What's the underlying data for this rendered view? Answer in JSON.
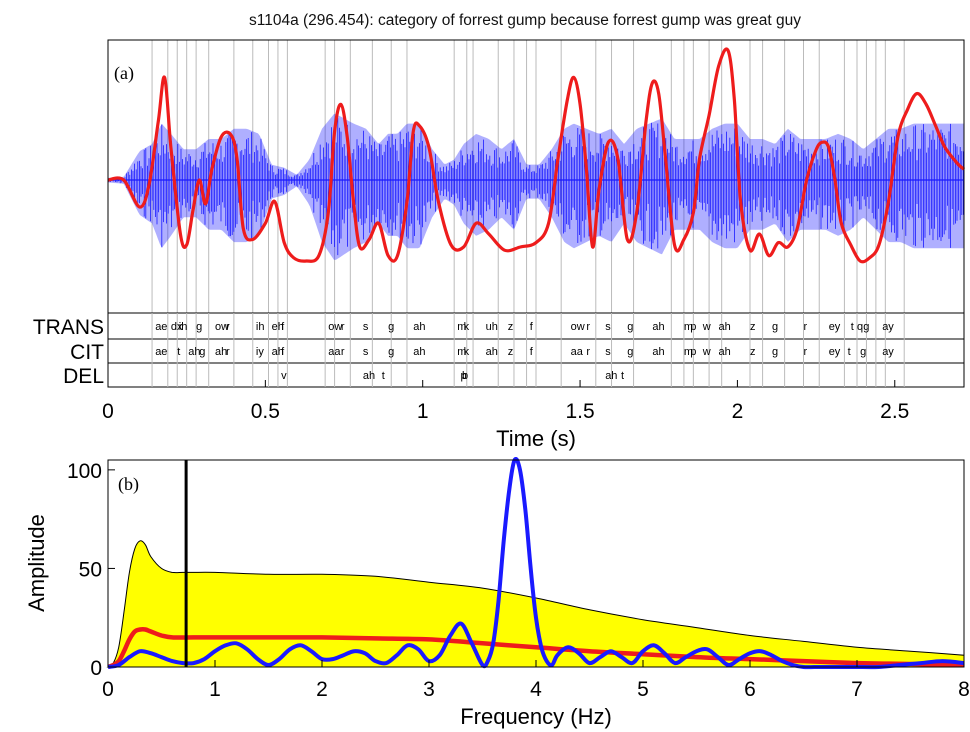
{
  "title": "s1104a (296.454): category of forrest gump because forrest gump was great guy",
  "colors": {
    "waveform": "#1a1aff",
    "envelope": "#ee1c1c",
    "spectrum_band": "#ffff00",
    "spectrum_mean": "#ee1c1c",
    "spectrum_trial": "#1a1aff",
    "marker": "#000000",
    "boundary": "#bbbbbb"
  },
  "chart_data": [
    {
      "type": "line",
      "panel_label": "(a)",
      "xlabel": "Time (s)",
      "ylabel": "",
      "xlim": [
        0,
        2.72
      ],
      "x_ticks": [
        0,
        0.5,
        1,
        1.5,
        2,
        2.5
      ],
      "x_tick_labels": [
        "0",
        "0.5",
        "1",
        "1.5",
        "2",
        "2.5"
      ],
      "grid": false,
      "series": [
        {
          "role": "envelope",
          "x": [
            0.0,
            0.05,
            0.1,
            0.13,
            0.16,
            0.18,
            0.2,
            0.23,
            0.25,
            0.27,
            0.29,
            0.31,
            0.33,
            0.36,
            0.39,
            0.41,
            0.43,
            0.46,
            0.5,
            0.53,
            0.56,
            0.59,
            0.63,
            0.67,
            0.7,
            0.72,
            0.74,
            0.76,
            0.78,
            0.8,
            0.83,
            0.86,
            0.89,
            0.92,
            0.95,
            0.97,
            0.99,
            1.02,
            1.05,
            1.09,
            1.13,
            1.17,
            1.21,
            1.26,
            1.31,
            1.36,
            1.4,
            1.43,
            1.46,
            1.48,
            1.5,
            1.52,
            1.54,
            1.56,
            1.59,
            1.62,
            1.65,
            1.68,
            1.71,
            1.73,
            1.75,
            1.77,
            1.8,
            1.83,
            1.86,
            1.88,
            1.91,
            1.94,
            1.97,
            1.99,
            2.01,
            2.04,
            2.07,
            2.1,
            2.13,
            2.16,
            2.19,
            2.22,
            2.25,
            2.27,
            2.29,
            2.31,
            2.33,
            2.36,
            2.39,
            2.42,
            2.45,
            2.48,
            2.51,
            2.54,
            2.57,
            2.6,
            2.63,
            2.66,
            2.7,
            2.72
          ],
          "y": [
            0.0,
            0.0,
            -0.25,
            -0.05,
            0.55,
            0.95,
            0.3,
            -0.5,
            -0.6,
            -0.28,
            0.0,
            -0.22,
            0.1,
            0.4,
            0.42,
            0.2,
            -0.45,
            -0.55,
            -0.4,
            -0.2,
            -0.58,
            -0.72,
            -0.75,
            -0.7,
            -0.3,
            0.45,
            0.7,
            0.4,
            -0.2,
            -0.62,
            -0.55,
            -0.4,
            -0.7,
            -0.7,
            -0.2,
            0.45,
            0.5,
            0.3,
            -0.2,
            -0.6,
            -0.62,
            -0.4,
            -0.5,
            -0.65,
            -0.62,
            -0.58,
            -0.4,
            0.2,
            0.75,
            0.95,
            0.7,
            0.1,
            -0.62,
            -0.1,
            0.35,
            0.2,
            -0.55,
            -0.3,
            0.55,
            0.9,
            0.8,
            0.25,
            -0.6,
            -0.55,
            -0.3,
            0.2,
            0.6,
            1.05,
            1.2,
            0.75,
            -0.2,
            -0.65,
            -0.5,
            -0.7,
            -0.58,
            -0.62,
            -0.45,
            0.0,
            0.28,
            0.35,
            0.3,
            0.0,
            -0.4,
            -0.6,
            -0.75,
            -0.72,
            -0.6,
            -0.2,
            0.4,
            0.65,
            0.8,
            0.7,
            0.5,
            0.3,
            0.15,
            0.1
          ]
        }
      ],
      "waveform_amplitude_envelope": {
        "x": [
          0.0,
          0.05,
          0.1,
          0.14,
          0.17,
          0.2,
          0.24,
          0.28,
          0.32,
          0.36,
          0.4,
          0.44,
          0.48,
          0.52,
          0.56,
          0.6,
          0.64,
          0.68,
          0.72,
          0.75,
          0.78,
          0.82,
          0.86,
          0.89,
          0.92,
          0.95,
          0.99,
          1.03,
          1.07,
          1.1,
          1.13,
          1.17,
          1.21,
          1.25,
          1.29,
          1.33,
          1.37,
          1.41,
          1.45,
          1.48,
          1.52,
          1.56,
          1.6,
          1.64,
          1.68,
          1.72,
          1.76,
          1.8,
          1.84,
          1.88,
          1.92,
          1.96,
          2.0,
          2.04,
          2.08,
          2.12,
          2.16,
          2.2,
          2.24,
          2.28,
          2.32,
          2.36,
          2.4,
          2.44,
          2.48,
          2.52,
          2.56,
          2.6,
          2.64,
          2.68,
          2.72
        ],
        "y": [
          0.02,
          0.03,
          0.28,
          0.35,
          0.55,
          0.45,
          0.3,
          0.3,
          0.4,
          0.4,
          0.5,
          0.5,
          0.45,
          0.15,
          0.12,
          0.05,
          0.2,
          0.5,
          0.65,
          0.6,
          0.55,
          0.5,
          0.35,
          0.45,
          0.45,
          0.55,
          0.55,
          0.3,
          0.15,
          0.2,
          0.35,
          0.45,
          0.4,
          0.3,
          0.4,
          0.15,
          0.15,
          0.3,
          0.5,
          0.55,
          0.5,
          0.45,
          0.5,
          0.35,
          0.5,
          0.55,
          0.6,
          0.4,
          0.4,
          0.4,
          0.5,
          0.55,
          0.55,
          0.4,
          0.4,
          0.35,
          0.5,
          0.4,
          0.4,
          0.4,
          0.45,
          0.4,
          0.3,
          0.4,
          0.5,
          0.5,
          0.55,
          0.55,
          0.55,
          0.55,
          0.55
        ]
      },
      "phone_boundaries": [
        0.14,
        0.19,
        0.22,
        0.25,
        0.28,
        0.32,
        0.4,
        0.46,
        0.51,
        0.54,
        0.57,
        0.69,
        0.72,
        0.77,
        0.84,
        0.9,
        0.95,
        1.1,
        1.14,
        1.16,
        1.24,
        1.29,
        1.33,
        1.36,
        1.44,
        1.55,
        1.6,
        1.67,
        1.79,
        1.83,
        1.86,
        1.91,
        1.95,
        2.04,
        2.08,
        2.15,
        2.21,
        2.26,
        2.34,
        2.38,
        2.41,
        2.44,
        2.47,
        2.53
      ],
      "tiers": [
        {
          "name": "TRANS",
          "labels": [
            {
              "text": "ae",
              "t": 0.15
            },
            {
              "text": "dx",
              "t": 0.2
            },
            {
              "text": "ih",
              "t": 0.225
            },
            {
              "text": "g",
              "t": 0.28
            },
            {
              "text": "ow",
              "t": 0.34
            },
            {
              "text": "r",
              "t": 0.375
            },
            {
              "text": "ih",
              "t": 0.47
            },
            {
              "text": "eh",
              "t": 0.52
            },
            {
              "text": "f",
              "t": 0.55
            },
            {
              "text": "ow",
              "t": 0.7
            },
            {
              "text": "r",
              "t": 0.74
            },
            {
              "text": "s",
              "t": 0.81
            },
            {
              "text": "g",
              "t": 0.89
            },
            {
              "text": "ah",
              "t": 0.97
            },
            {
              "text": "m",
              "t": 1.11
            },
            {
              "text": "k",
              "t": 1.13
            },
            {
              "text": "uh",
              "t": 1.2
            },
            {
              "text": "z",
              "t": 1.27
            },
            {
              "text": "f",
              "t": 1.34
            },
            {
              "text": "ow",
              "t": 1.47
            },
            {
              "text": "r",
              "t": 1.52
            },
            {
              "text": "s",
              "t": 1.58
            },
            {
              "text": "g",
              "t": 1.65
            },
            {
              "text": "ah",
              "t": 1.73
            },
            {
              "text": "m",
              "t": 1.83
            },
            {
              "text": "p",
              "t": 1.85
            },
            {
              "text": "w",
              "t": 1.89
            },
            {
              "text": "ah",
              "t": 1.94
            },
            {
              "text": "z",
              "t": 2.04
            },
            {
              "text": "g",
              "t": 2.11
            },
            {
              "text": "r",
              "t": 2.21
            },
            {
              "text": "ey",
              "t": 2.29
            },
            {
              "text": "t",
              "t": 2.36
            },
            {
              "text": "q",
              "t": 2.38
            },
            {
              "text": "g",
              "t": 2.4
            },
            {
              "text": "ay",
              "t": 2.46
            }
          ]
        },
        {
          "name": "CIT",
          "labels": [
            {
              "text": "ae",
              "t": 0.15
            },
            {
              "text": "t",
              "t": 0.22
            },
            {
              "text": "ah",
              "t": 0.255
            },
            {
              "text": "g",
              "t": 0.29
            },
            {
              "text": "ah",
              "t": 0.34
            },
            {
              "text": "r",
              "t": 0.375
            },
            {
              "text": "iy",
              "t": 0.47
            },
            {
              "text": "ah",
              "t": 0.52
            },
            {
              "text": "f",
              "t": 0.55
            },
            {
              "text": "aa",
              "t": 0.7
            },
            {
              "text": "r",
              "t": 0.74
            },
            {
              "text": "s",
              "t": 0.81
            },
            {
              "text": "g",
              "t": 0.89
            },
            {
              "text": "ah",
              "t": 0.97
            },
            {
              "text": "m",
              "t": 1.11
            },
            {
              "text": "k",
              "t": 1.13
            },
            {
              "text": "ah",
              "t": 1.2
            },
            {
              "text": "z",
              "t": 1.27
            },
            {
              "text": "f",
              "t": 1.34
            },
            {
              "text": "aa",
              "t": 1.47
            },
            {
              "text": "r",
              "t": 1.52
            },
            {
              "text": "s",
              "t": 1.58
            },
            {
              "text": "g",
              "t": 1.65
            },
            {
              "text": "ah",
              "t": 1.73
            },
            {
              "text": "m",
              "t": 1.83
            },
            {
              "text": "p",
              "t": 1.85
            },
            {
              "text": "w",
              "t": 1.89
            },
            {
              "text": "ah",
              "t": 1.94
            },
            {
              "text": "z",
              "t": 2.04
            },
            {
              "text": "g",
              "t": 2.11
            },
            {
              "text": "r",
              "t": 2.21
            },
            {
              "text": "ey",
              "t": 2.29
            },
            {
              "text": "t",
              "t": 2.35
            },
            {
              "text": "g",
              "t": 2.39
            },
            {
              "text": "ay",
              "t": 2.46
            }
          ]
        },
        {
          "name": "DEL",
          "labels": [
            {
              "text": "v",
              "t": 0.55
            },
            {
              "text": "ah",
              "t": 0.81
            },
            {
              "text": "t",
              "t": 0.87
            },
            {
              "text": "p",
              "t": 1.12
            },
            {
              "text": "b",
              "t": 1.125
            },
            {
              "text": "ah",
              "t": 1.58
            },
            {
              "text": "t",
              "t": 1.63
            }
          ]
        }
      ]
    },
    {
      "type": "area",
      "panel_label": "(b)",
      "xlabel": "Frequency (Hz)",
      "ylabel": "Amplitude",
      "xlim": [
        0,
        8
      ],
      "ylim": [
        0,
        105
      ],
      "x_ticks": [
        0,
        1,
        2,
        3,
        4,
        5,
        6,
        7,
        8
      ],
      "x_tick_labels": [
        "0",
        "1",
        "2",
        "3",
        "4",
        "5",
        "6",
        "7",
        "8"
      ],
      "y_ticks": [
        0,
        50,
        100
      ],
      "y_tick_labels": [
        "0",
        "50",
        "100"
      ],
      "grid": false,
      "marker_x": 0.73,
      "series": [
        {
          "role": "band",
          "x": [
            0,
            0.05,
            0.1,
            0.15,
            0.2,
            0.25,
            0.3,
            0.35,
            0.4,
            0.5,
            0.6,
            0.7,
            0.8,
            1.0,
            1.5,
            2.0,
            2.5,
            3.0,
            3.5,
            4.0,
            4.5,
            5.0,
            5.5,
            6.0,
            6.5,
            7.0,
            7.5,
            8.0
          ],
          "y": [
            0,
            2,
            10,
            28,
            48,
            60,
            64,
            62,
            56,
            50,
            48,
            48,
            48,
            48,
            47,
            47,
            46,
            43,
            40,
            35,
            29,
            24,
            20,
            16,
            13,
            10,
            8,
            6
          ]
        },
        {
          "role": "mean",
          "x": [
            0,
            0.05,
            0.1,
            0.15,
            0.2,
            0.25,
            0.3,
            0.35,
            0.4,
            0.5,
            0.6,
            0.8,
            1.0,
            1.5,
            2.0,
            2.5,
            3.0,
            3.5,
            4.0,
            4.5,
            5.0,
            5.5,
            6.0,
            6.5,
            7.0,
            7.5,
            8.0
          ],
          "y": [
            0,
            1,
            3,
            8,
            14,
            18,
            19,
            19,
            18,
            16,
            15,
            15,
            15,
            15,
            15,
            14.5,
            14,
            12,
            10,
            8,
            6.5,
            5,
            4,
            3,
            2,
            1.5,
            1
          ]
        },
        {
          "role": "trial",
          "x": [
            0,
            0.1,
            0.2,
            0.3,
            0.4,
            0.5,
            0.6,
            0.7,
            0.8,
            0.9,
            1.0,
            1.1,
            1.2,
            1.3,
            1.4,
            1.5,
            1.6,
            1.7,
            1.8,
            1.9,
            2.0,
            2.1,
            2.2,
            2.3,
            2.4,
            2.5,
            2.6,
            2.7,
            2.8,
            2.9,
            3.0,
            3.1,
            3.2,
            3.3,
            3.4,
            3.5,
            3.55,
            3.6,
            3.65,
            3.7,
            3.75,
            3.8,
            3.85,
            3.9,
            3.95,
            4.0,
            4.05,
            4.1,
            4.15,
            4.2,
            4.3,
            4.4,
            4.5,
            4.6,
            4.7,
            4.8,
            4.9,
            5.0,
            5.1,
            5.2,
            5.3,
            5.4,
            5.5,
            5.6,
            5.7,
            5.8,
            5.9,
            6.0,
            6.1,
            6.2,
            6.3,
            6.4,
            6.5,
            6.6,
            6.7,
            6.8,
            6.9,
            7.0,
            7.2,
            7.4,
            7.6,
            7.8,
            8.0
          ],
          "y": [
            0,
            1,
            5,
            8,
            7,
            5,
            3,
            2,
            2,
            4,
            8,
            11,
            12,
            9,
            4,
            1,
            4,
            9,
            11,
            8,
            4,
            4,
            6,
            8,
            7,
            3,
            2,
            6,
            11,
            9,
            3,
            6,
            16,
            22,
            12,
            1,
            3,
            12,
            34,
            65,
            90,
            105,
            100,
            80,
            50,
            25,
            10,
            3,
            1,
            6,
            10,
            7,
            2,
            5,
            8,
            5,
            2,
            8,
            11,
            7,
            2,
            5,
            8,
            9,
            5,
            1,
            4,
            7,
            8,
            6,
            3,
            1,
            0,
            0,
            0,
            0,
            0,
            0,
            0,
            1,
            2,
            3,
            2
          ]
        }
      ]
    }
  ]
}
